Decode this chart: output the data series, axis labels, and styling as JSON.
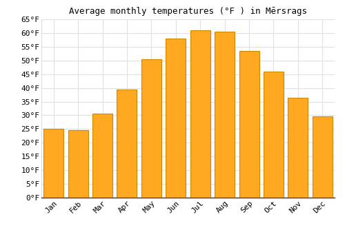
{
  "title": "Average monthly temperatures (°F ) in Mērsrags",
  "months": [
    "Jan",
    "Feb",
    "Mar",
    "Apr",
    "May",
    "Jun",
    "Jul",
    "Aug",
    "Sep",
    "Oct",
    "Nov",
    "Dec"
  ],
  "values": [
    25,
    24.5,
    30.5,
    39.5,
    50.5,
    58,
    61,
    60.5,
    53.5,
    46,
    36.5,
    29.5
  ],
  "bar_color": "#FFA820",
  "bar_edge_color": "#CC8800",
  "ylim": [
    0,
    65
  ],
  "yticks": [
    0,
    5,
    10,
    15,
    20,
    25,
    30,
    35,
    40,
    45,
    50,
    55,
    60,
    65
  ],
  "ytick_labels": [
    "0°F",
    "5°F",
    "10°F",
    "15°F",
    "20°F",
    "25°F",
    "30°F",
    "35°F",
    "40°F",
    "45°F",
    "50°F",
    "55°F",
    "60°F",
    "65°F"
  ],
  "background_color": "#ffffff",
  "grid_color": "#e0e0e0",
  "title_fontsize": 9,
  "tick_fontsize": 8,
  "bar_width": 0.82
}
